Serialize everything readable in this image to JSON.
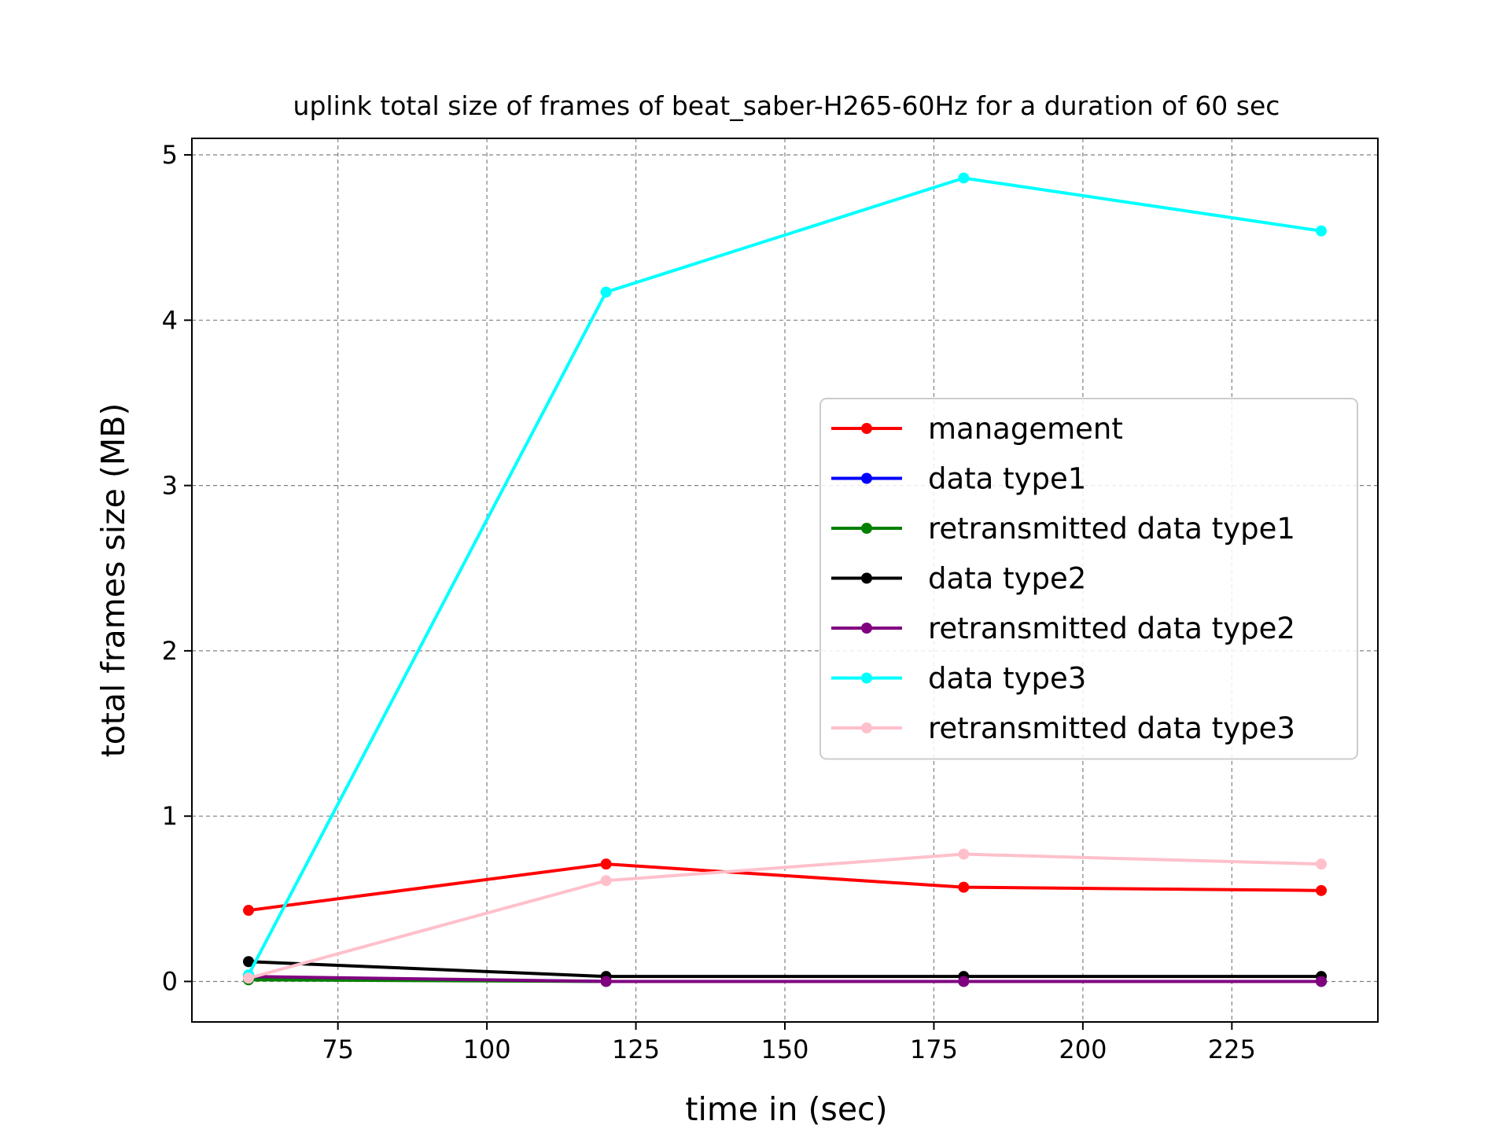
{
  "chart_data": {
    "type": "line",
    "title": "uplink total size of frames of beat_saber-H265-60Hz for a duration of 60 sec",
    "xlabel": "time in (sec)",
    "ylabel": "total frames size (MB)",
    "x": [
      60,
      120,
      180,
      240
    ],
    "xlim": [
      50.5,
      249.5
    ],
    "ylim": [
      -0.245,
      5.1
    ],
    "x_ticks": [
      75,
      100,
      125,
      150,
      175,
      200,
      225
    ],
    "y_ticks": [
      0,
      1,
      2,
      3,
      4,
      5
    ],
    "grid": true,
    "legend_position": "center-right",
    "series": [
      {
        "name": "management",
        "color": "#ff0000",
        "values": [
          0.43,
          0.71,
          0.57,
          0.55
        ]
      },
      {
        "name": "data type1",
        "color": "#0000ff",
        "values": [
          0.02,
          0.0,
          0.0,
          0.0
        ]
      },
      {
        "name": "retransmitted data type1",
        "color": "#008000",
        "values": [
          0.01,
          0.0,
          0.0,
          0.0
        ]
      },
      {
        "name": "data type2",
        "color": "#000000",
        "values": [
          0.12,
          0.03,
          0.03,
          0.03
        ]
      },
      {
        "name": "retransmitted data type2",
        "color": "#800080",
        "values": [
          0.03,
          0.0,
          0.0,
          0.0
        ]
      },
      {
        "name": "data type3",
        "color": "#00ffff",
        "values": [
          0.04,
          4.17,
          4.86,
          4.54
        ]
      },
      {
        "name": "retransmitted data type3",
        "color": "#ffc0cb",
        "values": [
          0.02,
          0.61,
          0.77,
          0.71
        ]
      }
    ]
  }
}
